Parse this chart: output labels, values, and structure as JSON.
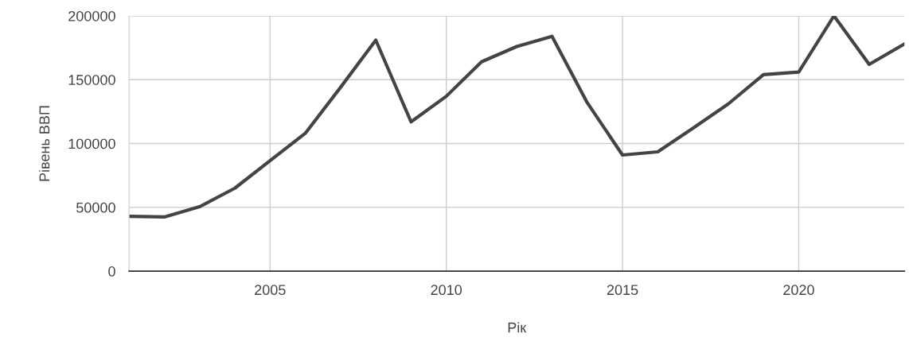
{
  "chart_data": {
    "type": "line",
    "xlabel": "Рік",
    "ylabel": "Рівень ВВП",
    "x": [
      2001,
      2002,
      2003,
      2004,
      2005,
      2006,
      2007,
      2008,
      2009,
      2010,
      2011,
      2012,
      2013,
      2014,
      2015,
      2016,
      2017,
      2018,
      2019,
      2020,
      2021,
      2022,
      2023
    ],
    "series": [
      {
        "color": "#444444",
        "values": [
          43000,
          42500,
          50500,
          65000,
          86500,
          108000,
          144000,
          181000,
          117000,
          137000,
          164000,
          176000,
          184000,
          132000,
          91000,
          93500,
          112000,
          131000,
          154000,
          156000,
          200000,
          162000,
          178000
        ]
      }
    ],
    "xlim": [
      2001,
      2023
    ],
    "xticks": [
      2005,
      2010,
      2015,
      2020
    ],
    "ylim": [
      0,
      200000
    ],
    "yticks": [
      0,
      50000,
      100000,
      150000,
      200000
    ],
    "grid": true,
    "legend": false,
    "marker": "none",
    "line_style": "solid"
  }
}
